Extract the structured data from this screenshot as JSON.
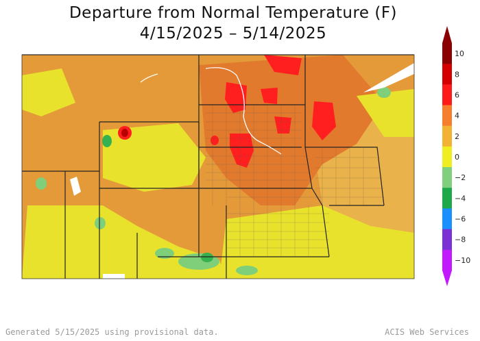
{
  "title": "Departure from Normal Temperature (F)",
  "subtitle": "4/15/2025 – 5/14/2025",
  "legend": {
    "ticks": [
      "10",
      "8",
      "6",
      "4",
      "2",
      "0",
      "−2",
      "−4",
      "−6",
      "−8",
      "−10"
    ],
    "colors": [
      "#8b0000",
      "#d40000",
      "#ff1a1a",
      "#f57f2c",
      "#f2b233",
      "#eeee22",
      "#7ed07e",
      "#1fa84a",
      "#1a8fff",
      "#7a32d4",
      "#c21aff"
    ]
  },
  "map": {
    "colors": {
      "orange": "#e59a3a",
      "light_orange": "#eab24a",
      "dark_orange": "#e27a2e",
      "yellow": "#e8e22c",
      "light_green": "#7fcf7a",
      "green": "#36b14f",
      "red": "#ff1f1f",
      "dark_red": "#b80000",
      "boundary": "#222222"
    }
  },
  "footer": {
    "left": "Generated 5/15/2025 using provisional data.",
    "right": "ACIS Web Services"
  }
}
